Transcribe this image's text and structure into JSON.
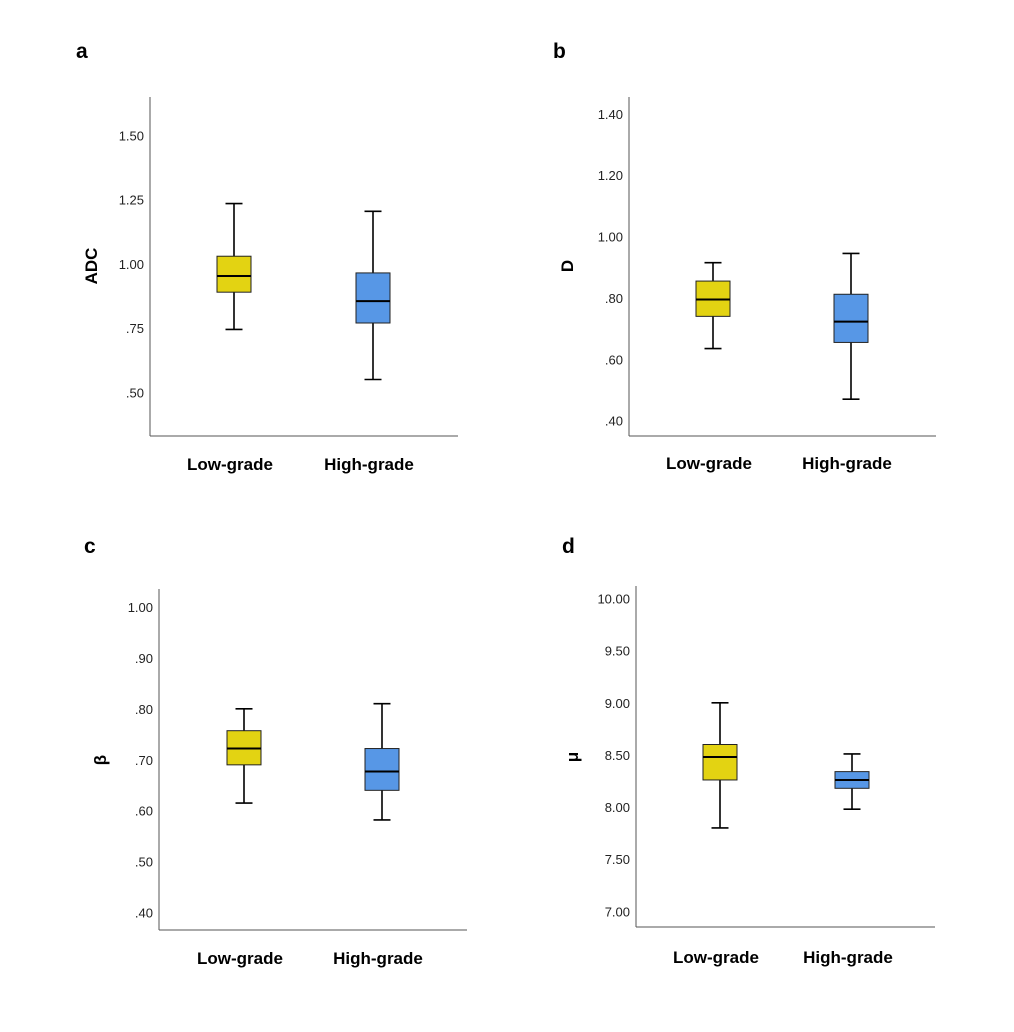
{
  "chart_data": [
    {
      "type": "boxplot",
      "panel_label": "a",
      "ylabel": "ADC",
      "categories": [
        "Low-grade",
        "High-grade"
      ],
      "ylim": [
        0.33,
        1.65
      ],
      "ticks": [
        0.5,
        0.75,
        1.0,
        1.25,
        1.5
      ],
      "tick_labels": [
        ".50",
        ".75",
        "1.00",
        "1.25",
        "1.50"
      ],
      "boxes": [
        {
          "name": "Low-grade",
          "color": "#e3d312",
          "min": 0.745,
          "q1": 0.89,
          "median": 0.953,
          "q3": 1.03,
          "max": 1.235
        },
        {
          "name": "High-grade",
          "color": "#5797e6",
          "min": 0.55,
          "q1": 0.77,
          "median": 0.855,
          "q3": 0.965,
          "max": 1.205
        }
      ]
    },
    {
      "type": "boxplot",
      "panel_label": "b",
      "ylabel": "D",
      "categories": [
        "Low-grade",
        "High-grade"
      ],
      "ylim": [
        0.35,
        1.455
      ],
      "ticks": [
        0.4,
        0.6,
        0.8,
        1.0,
        1.2,
        1.4
      ],
      "tick_labels": [
        ".40",
        ".60",
        ".80",
        "1.00",
        "1.20",
        "1.40"
      ],
      "boxes": [
        {
          "name": "Low-grade",
          "color": "#e3d312",
          "min": 0.635,
          "q1": 0.74,
          "median": 0.795,
          "q3": 0.855,
          "max": 0.915
        },
        {
          "name": "High-grade",
          "color": "#5797e6",
          "min": 0.47,
          "q1": 0.655,
          "median": 0.723,
          "q3": 0.812,
          "max": 0.945
        }
      ]
    },
    {
      "type": "boxplot",
      "panel_label": "c",
      "ylabel": "β",
      "categories": [
        "Low-grade",
        "High-grade"
      ],
      "ylim": [
        0.366,
        1.035
      ],
      "ticks": [
        0.4,
        0.5,
        0.6,
        0.7,
        0.8,
        0.9,
        1.0
      ],
      "tick_labels": [
        ".40",
        ".50",
        ".60",
        ".70",
        ".80",
        ".90",
        "1.00"
      ],
      "boxes": [
        {
          "name": "Low-grade",
          "color": "#e3d312",
          "min": 0.615,
          "q1": 0.69,
          "median": 0.722,
          "q3": 0.757,
          "max": 0.8
        },
        {
          "name": "High-grade",
          "color": "#5797e6",
          "min": 0.582,
          "q1": 0.64,
          "median": 0.677,
          "q3": 0.722,
          "max": 0.81
        }
      ]
    },
    {
      "type": "boxplot",
      "panel_label": "d",
      "ylabel": "μ",
      "categories": [
        "Low-grade",
        "High-grade"
      ],
      "ylim": [
        6.85,
        10.12
      ],
      "ticks": [
        7.0,
        7.5,
        8.0,
        8.5,
        9.0,
        9.5,
        10.0
      ],
      "tick_labels": [
        "7.00",
        "7.50",
        "8.00",
        "8.50",
        "9.00",
        "9.50",
        "10.00"
      ],
      "boxes": [
        {
          "name": "Low-grade",
          "color": "#e3d312",
          "min": 7.8,
          "q1": 8.26,
          "median": 8.48,
          "q3": 8.6,
          "max": 9.0
        },
        {
          "name": "High-grade",
          "color": "#5797e6",
          "min": 7.98,
          "q1": 8.18,
          "median": 8.26,
          "q3": 8.34,
          "max": 8.51
        }
      ]
    }
  ]
}
